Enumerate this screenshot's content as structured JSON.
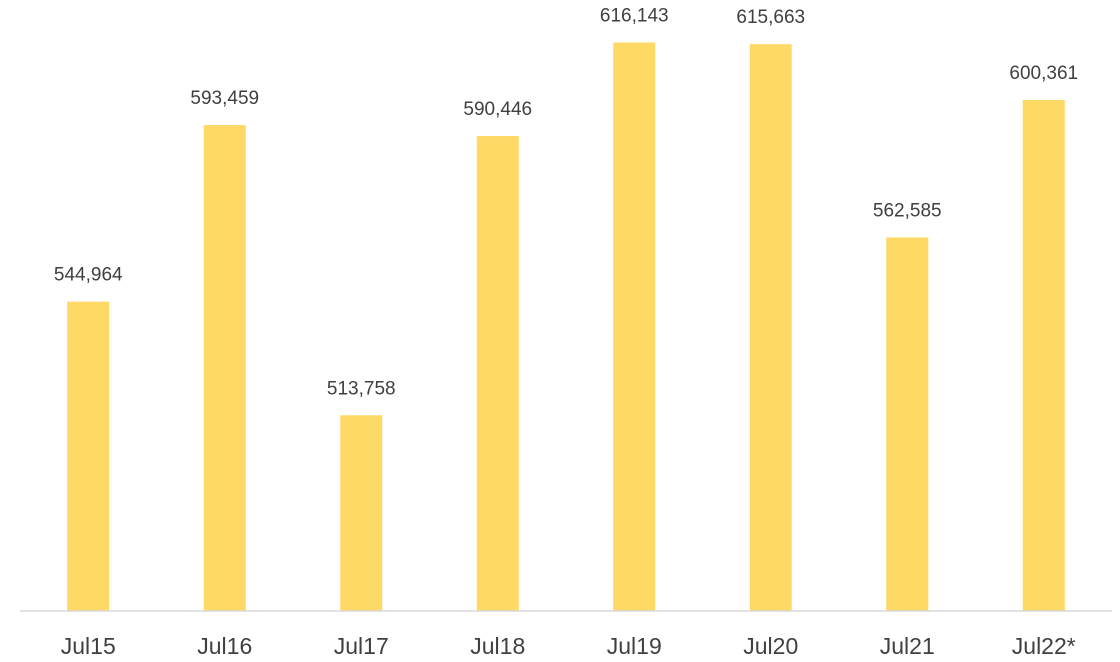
{
  "chart_data": {
    "type": "bar",
    "categories": [
      "Jul15",
      "Jul16",
      "Jul17",
      "Jul18",
      "Jul19",
      "Jul20",
      "Jul21",
      "Jul22*"
    ],
    "values": [
      544964,
      593459,
      513758,
      590446,
      616143,
      615663,
      562585,
      600361
    ],
    "value_labels": [
      "544,964",
      "593,459",
      "513,758",
      "590,446",
      "616,143",
      "615,663",
      "562,585",
      "600,361"
    ],
    "color": "#ffd965",
    "ylim": [
      460000,
      630000
    ]
  }
}
